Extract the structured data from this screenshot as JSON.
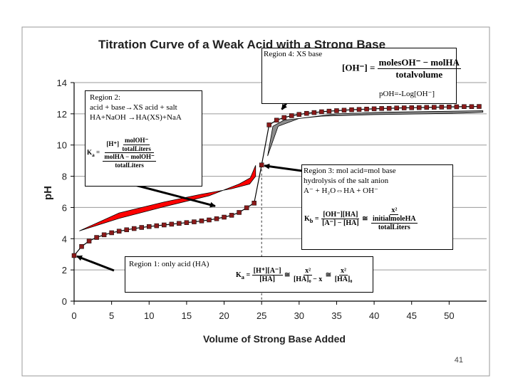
{
  "chart_data": {
    "type": "line",
    "title": "Titration Curve of a Weak Acid with a Strong Base",
    "xlabel": "Volume of Strong Base Added",
    "ylabel": "pH",
    "xlim": [
      0,
      55
    ],
    "ylim": [
      0,
      14
    ],
    "xticks": [
      0,
      5,
      10,
      15,
      20,
      25,
      30,
      35,
      40,
      45,
      50
    ],
    "yticks": [
      0,
      2,
      4,
      6,
      8,
      10,
      12,
      14
    ],
    "series": [
      {
        "name": "pH",
        "color": "#8b1a1a",
        "x": [
          0,
          1,
          2,
          3,
          4,
          5,
          6,
          7,
          8,
          9,
          10,
          11,
          12,
          13,
          14,
          15,
          16,
          17,
          18,
          19,
          20,
          21,
          22,
          23,
          24,
          25,
          26,
          27,
          28,
          29,
          30,
          31,
          32,
          33,
          34,
          35,
          36,
          37,
          38,
          39,
          40,
          41,
          42,
          43,
          44,
          45,
          46,
          47,
          48,
          49,
          50,
          51,
          52,
          53,
          54
        ],
        "y": [
          2.92,
          3.5,
          3.85,
          4.08,
          4.25,
          4.38,
          4.48,
          4.57,
          4.65,
          4.72,
          4.78,
          4.83,
          4.88,
          4.93,
          4.98,
          5.03,
          5.08,
          5.14,
          5.2,
          5.28,
          5.38,
          5.5,
          5.68,
          5.98,
          6.28,
          8.72,
          11.29,
          11.59,
          11.76,
          11.88,
          11.96,
          12.03,
          12.08,
          12.13,
          12.17,
          12.2,
          12.23,
          12.26,
          12.28,
          12.3,
          12.32,
          12.34,
          12.35,
          12.37,
          12.38,
          12.39,
          12.4,
          12.41,
          12.42,
          12.43,
          12.44,
          12.45,
          12.46,
          12.46,
          12.47
        ]
      }
    ],
    "equivalence_point": {
      "x": 25,
      "y": 8.72
    },
    "shaded_regions": [
      {
        "name": "buffer-region",
        "color": "#ff0000"
      },
      {
        "name": "excess-base-region",
        "color": "#8c8c8c"
      }
    ],
    "page_number": "41"
  },
  "region1": {
    "label": "Region 1: only acid (HA)",
    "ka": "K",
    "ka_sub": "a",
    "f1_num": "[H⁺][A⁻]",
    "f1_den": "[HA]",
    "f2_num": "x²",
    "f2_den": "[HA]₀ − x",
    "f3_num": "x²",
    "f3_den": "[HA]₀",
    "approx": "≅",
    "eq": "="
  },
  "region2": {
    "line1": "Region 2:",
    "line2": "acid + base→XS acid + salt",
    "line3": "HA+NaOH →HA(XS)+NaA",
    "ka": "K",
    "ka_sub": "a",
    "h": "[H⁺]",
    "inner_num": "molOH⁻",
    "inner_den": "totalLiters",
    "lower_num": "molHA − molOH⁻",
    "lower_den": "totalLiters",
    "eq": "="
  },
  "region3": {
    "line1": "Region 3: mol acid=mol base",
    "line2": "hydrolysis of the salt anion",
    "line3": "A⁻ + H₂O⇔HA + OH⁻",
    "kb": "K",
    "kb_sub": "b",
    "f1_num": "[OH⁻][HA]",
    "f1_den": "[A⁻] − [HA]",
    "f2_num": "x²",
    "f2_den_num": "initialmoleHA",
    "f2_den_den": "totalLiters",
    "approx": "≅",
    "eq": "="
  },
  "region4": {
    "line1": "Region 4: XS base",
    "oh": "[OH⁻] =",
    "num": "molesOH⁻ − molHA",
    "den": "totalvolume",
    "poh": "pOH=-Log[OH⁻]"
  }
}
